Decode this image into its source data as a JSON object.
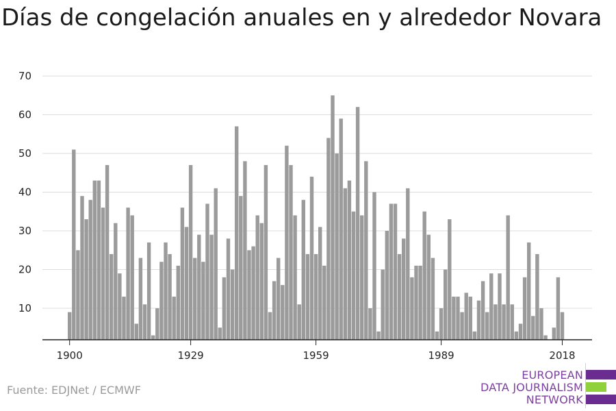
{
  "title": "Días de congelación anuales en y alrededor Novara",
  "source": "Fuente: EDJNet / ECMWF",
  "logo": {
    "line1": "EUROPEAN",
    "line2": "DATA JOURNALISM",
    "line3": "NETWORK"
  },
  "colors": {
    "bar": "#9b9b9b",
    "grid": "#dcdcdc",
    "axis": "#222222",
    "logo_purple": "#6b2c91",
    "logo_green": "#8fd13b"
  },
  "chart_data": {
    "type": "bar",
    "title": "Días de congelación anuales en y alrededor Novara",
    "xlabel": "",
    "ylabel": "",
    "ylim": [
      2,
      70
    ],
    "yticks": [
      10,
      20,
      30,
      40,
      50,
      60,
      70
    ],
    "xtick_labels": [
      "1900",
      "1929",
      "1959",
      "1989",
      "2018"
    ],
    "grid": true,
    "x": [
      1900,
      1901,
      1902,
      1903,
      1904,
      1905,
      1906,
      1907,
      1908,
      1909,
      1910,
      1911,
      1912,
      1913,
      1914,
      1915,
      1916,
      1917,
      1918,
      1919,
      1920,
      1921,
      1922,
      1923,
      1924,
      1925,
      1926,
      1927,
      1928,
      1929,
      1930,
      1931,
      1932,
      1933,
      1934,
      1935,
      1936,
      1937,
      1938,
      1939,
      1940,
      1941,
      1942,
      1943,
      1944,
      1945,
      1946,
      1947,
      1948,
      1949,
      1950,
      1951,
      1952,
      1953,
      1954,
      1955,
      1956,
      1957,
      1958,
      1959,
      1960,
      1961,
      1962,
      1963,
      1964,
      1965,
      1966,
      1967,
      1968,
      1969,
      1970,
      1971,
      1972,
      1973,
      1974,
      1975,
      1976,
      1977,
      1978,
      1979,
      1980,
      1981,
      1982,
      1983,
      1984,
      1985,
      1986,
      1987,
      1988,
      1989,
      1990,
      1991,
      1992,
      1993,
      1994,
      1995,
      1996,
      1997,
      1998,
      1999,
      2000,
      2001,
      2002,
      2003,
      2004,
      2005,
      2006,
      2007,
      2008,
      2009,
      2010,
      2011,
      2012,
      2013,
      2014,
      2015,
      2016,
      2017,
      2018
    ],
    "values": [
      9,
      51,
      25,
      39,
      33,
      38,
      43,
      43,
      36,
      47,
      24,
      32,
      19,
      13,
      36,
      34,
      6,
      23,
      11,
      27,
      3,
      10,
      22,
      27,
      24,
      13,
      21,
      36,
      31,
      47,
      23,
      29,
      22,
      37,
      29,
      41,
      5,
      18,
      28,
      20,
      57,
      39,
      48,
      25,
      26,
      34,
      32,
      47,
      9,
      17,
      23,
      16,
      52,
      47,
      34,
      11,
      38,
      24,
      44,
      24,
      31,
      21,
      54,
      65,
      50,
      59,
      41,
      43,
      35,
      62,
      34,
      48,
      10,
      40,
      4,
      20,
      30,
      37,
      37,
      24,
      28,
      41,
      18,
      21,
      21,
      35,
      29,
      23,
      4,
      10,
      20,
      33,
      13,
      13,
      9,
      14,
      13,
      4,
      12,
      17,
      9,
      19,
      11,
      19,
      11,
      34,
      11,
      4,
      6,
      18,
      27,
      8,
      24,
      10,
      3,
      0,
      5,
      18,
      9
    ]
  }
}
